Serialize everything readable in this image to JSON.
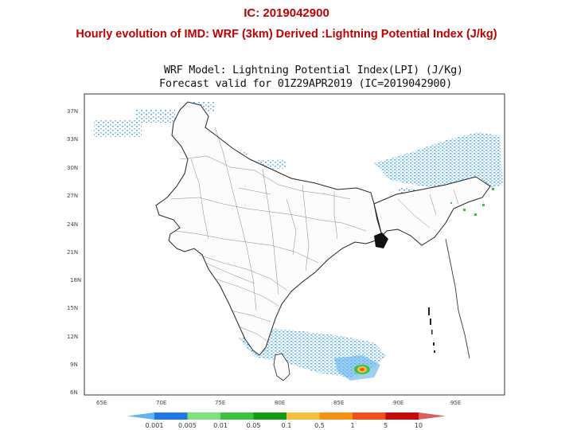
{
  "header": {
    "ic_line": "IC: 2019042900",
    "evolution_line": "Hourly evolution of IMD: WRF (3km) Derived :Lightning Potential Index (J/kg)"
  },
  "map_title": {
    "model": "WRF Model: Lightning Potential Index(LPI) (J/Kg)",
    "forecast": "Forecast valid for 01Z29APR2019 (IC=2019042900)"
  },
  "axes": {
    "lat_labels": [
      "37N",
      "33N",
      "30N",
      "27N",
      "24N",
      "21N",
      "18N",
      "15N",
      "12N",
      "9N",
      "6N"
    ],
    "lon_labels": [
      "65E",
      "70E",
      "75E",
      "80E",
      "85E",
      "90E",
      "95E"
    ]
  },
  "colorbar": {
    "labels": [
      "0.001",
      "0.005",
      "0.01",
      "0.05",
      "0.1",
      "0.5",
      "1",
      "5",
      "10"
    ],
    "colors": [
      "#5fb4ee",
      "#1f78e0",
      "#7ee07e",
      "#3cc23c",
      "#129c12",
      "#f6c040",
      "#f59318",
      "#f0501e",
      "#c40a0a",
      "#d86060"
    ]
  },
  "colors": {
    "header_text": "#c00000",
    "land_outline": "#222222",
    "lpi_light": "#6ab8ea"
  }
}
